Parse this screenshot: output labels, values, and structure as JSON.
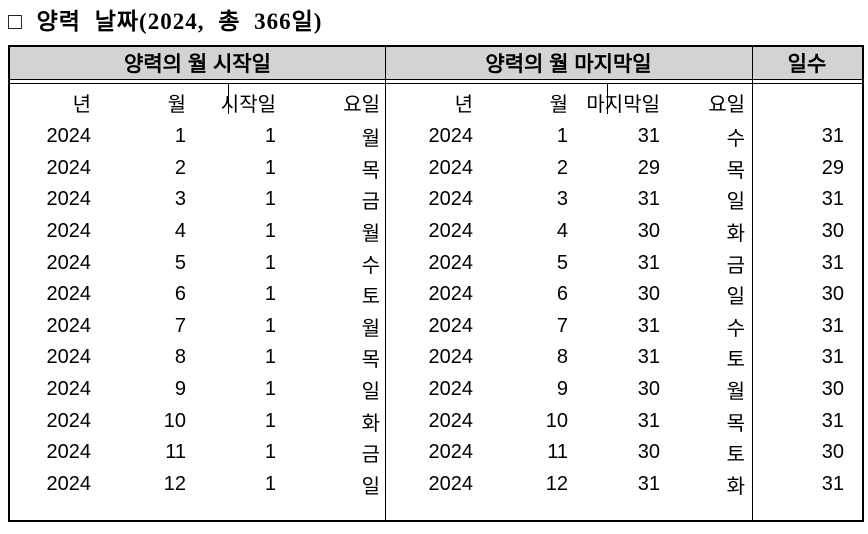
{
  "title": "□ 양력 날짜(2024, 총 366일)",
  "table": {
    "section_headers": {
      "start": "양력의 월 시작일",
      "end": "양력의 월 마지막일",
      "days": "일수"
    },
    "column_headers": {
      "start": {
        "year": "년",
        "month": "월",
        "day": "시작일",
        "weekday": "요일"
      },
      "end": {
        "year": "년",
        "month": "월",
        "day": "마지막일",
        "weekday": "요일"
      }
    },
    "rows": [
      {
        "start": {
          "year": "2024",
          "month": "1",
          "day": "1",
          "weekday": "월"
        },
        "end": {
          "year": "2024",
          "month": "1",
          "day": "31",
          "weekday": "수"
        },
        "days": "31"
      },
      {
        "start": {
          "year": "2024",
          "month": "2",
          "day": "1",
          "weekday": "목"
        },
        "end": {
          "year": "2024",
          "month": "2",
          "day": "29",
          "weekday": "목"
        },
        "days": "29"
      },
      {
        "start": {
          "year": "2024",
          "month": "3",
          "day": "1",
          "weekday": "금"
        },
        "end": {
          "year": "2024",
          "month": "3",
          "day": "31",
          "weekday": "일"
        },
        "days": "31"
      },
      {
        "start": {
          "year": "2024",
          "month": "4",
          "day": "1",
          "weekday": "월"
        },
        "end": {
          "year": "2024",
          "month": "4",
          "day": "30",
          "weekday": "화"
        },
        "days": "30"
      },
      {
        "start": {
          "year": "2024",
          "month": "5",
          "day": "1",
          "weekday": "수"
        },
        "end": {
          "year": "2024",
          "month": "5",
          "day": "31",
          "weekday": "금"
        },
        "days": "31"
      },
      {
        "start": {
          "year": "2024",
          "month": "6",
          "day": "1",
          "weekday": "토"
        },
        "end": {
          "year": "2024",
          "month": "6",
          "day": "30",
          "weekday": "일"
        },
        "days": "30"
      },
      {
        "start": {
          "year": "2024",
          "month": "7",
          "day": "1",
          "weekday": "월"
        },
        "end": {
          "year": "2024",
          "month": "7",
          "day": "31",
          "weekday": "수"
        },
        "days": "31"
      },
      {
        "start": {
          "year": "2024",
          "month": "8",
          "day": "1",
          "weekday": "목"
        },
        "end": {
          "year": "2024",
          "month": "8",
          "day": "31",
          "weekday": "토"
        },
        "days": "31"
      },
      {
        "start": {
          "year": "2024",
          "month": "9",
          "day": "1",
          "weekday": "일"
        },
        "end": {
          "year": "2024",
          "month": "9",
          "day": "30",
          "weekday": "월"
        },
        "days": "30"
      },
      {
        "start": {
          "year": "2024",
          "month": "10",
          "day": "1",
          "weekday": "화"
        },
        "end": {
          "year": "2024",
          "month": "10",
          "day": "31",
          "weekday": "목"
        },
        "days": "31"
      },
      {
        "start": {
          "year": "2024",
          "month": "11",
          "day": "1",
          "weekday": "금"
        },
        "end": {
          "year": "2024",
          "month": "11",
          "day": "30",
          "weekday": "토"
        },
        "days": "30"
      },
      {
        "start": {
          "year": "2024",
          "month": "12",
          "day": "1",
          "weekday": "일"
        },
        "end": {
          "year": "2024",
          "month": "12",
          "day": "31",
          "weekday": "화"
        },
        "days": "31"
      }
    ]
  }
}
